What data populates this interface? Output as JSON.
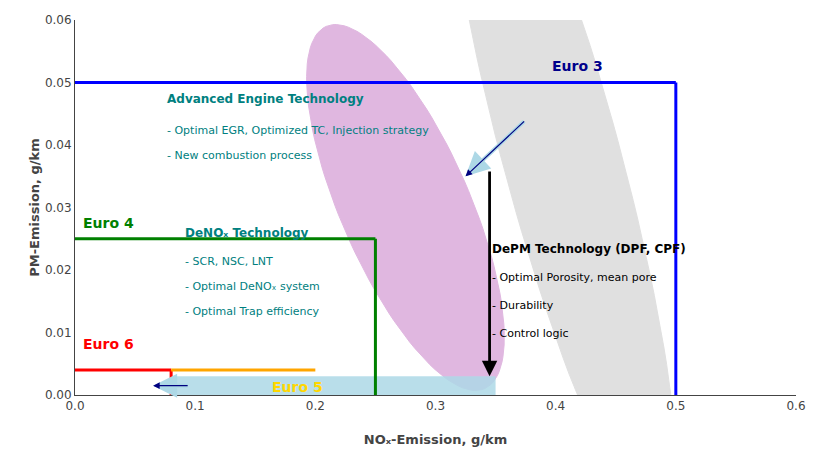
{
  "chart_data": {
    "type": "line",
    "xlabel": "NOₓ-Emission, g/km",
    "ylabel": "PM-Emission, g/km",
    "xlim": [
      0.0,
      0.6
    ],
    "ylim": [
      0.0,
      0.06
    ],
    "xticks": [
      {
        "value": 0.0,
        "label": "0.0"
      },
      0.1,
      0.2,
      0.3,
      0.4,
      0.5,
      0.6
    ],
    "yticks": [
      {
        "value": 0.0,
        "label": "0.00"
      },
      0.01,
      0.02,
      0.03,
      0.04,
      0.05,
      0.06
    ],
    "grid": false,
    "regions": [
      {
        "shape": "ellipse",
        "cx": 0.405,
        "cy": 0.038,
        "width": 0.22,
        "height": 0.055,
        "angle": -30,
        "color": "#cccccc"
      },
      {
        "shape": "ellipse",
        "cx": 0.275,
        "cy": 0.03,
        "width": 0.17,
        "height": 0.04,
        "angle": -15,
        "color": "#cc88cc"
      },
      {
        "shape": "rect",
        "name": "Euro 5",
        "x": [
          0.08,
          0.35
        ],
        "y": [
          0.0,
          0.003
        ],
        "color": "lightblue",
        "label": {
          "x": 0.185,
          "y": 0.0013,
          "color": "gold"
        }
      }
    ],
    "series": [
      {
        "name": "Euro 3",
        "color": "blue",
        "x": [
          0.0,
          0.5,
          null,
          0.5,
          0.5
        ],
        "y": [
          0.05,
          0.05,
          null,
          0.0,
          0.05
        ],
        "label": {
          "x": 0.395,
          "y": 0.051,
          "color": "darkblue"
        }
      },
      {
        "name": "Euro 4",
        "color": "green",
        "x": [
          0.0,
          0.25,
          null,
          0.25,
          0.25
        ],
        "y": [
          0.025,
          0.025,
          null,
          0.0,
          0.025
        ],
        "label": {
          "x": 0.005,
          "y": 0.026,
          "color": "green"
        }
      },
      {
        "name": "Euro 6",
        "color": "red",
        "x": [
          0.0,
          0.08,
          null,
          0.08,
          0.08
        ],
        "y": [
          0.004,
          0.004,
          null,
          0.0,
          0.004
        ],
        "label": {
          "x": 0.005,
          "y": 0.0065,
          "color": "red"
        }
      },
      {
        "color": "orange",
        "x": [
          0.08,
          0.2
        ],
        "y": [
          0.004,
          0.004
        ]
      }
    ],
    "arrows": [
      {
        "x1": 0.345,
        "y1": 0.036,
        "x2": 0.345,
        "y2": 0.003,
        "colors": [
          "black"
        ]
      },
      {
        "x1": 0.375,
        "y1": 0.044,
        "x2": 0.325,
        "y2": 0.035,
        "colors": [
          "lightblue",
          "navy"
        ]
      },
      {
        "x1": 0.095,
        "y1": 0.0015,
        "x2": 0.065,
        "y2": 0.0015,
        "colors": [
          "lightblue",
          "navy"
        ]
      }
    ],
    "notes": [
      {
        "color": "teal",
        "title": {
          "text": "Advanced Engine Technology",
          "x": 0.075,
          "y": 0.046
        },
        "lines": [
          {
            "text": "- Optimal EGR, Optimized TC, Injection strategy",
            "x": 0.075,
            "y": 0.041
          },
          {
            "text": "- New combustion process",
            "x": 0.075,
            "y": 0.037
          }
        ]
      },
      {
        "color": "teal",
        "title": {
          "text": "DeNOₓ Technology",
          "x": 0.09,
          "y": 0.0245
        },
        "lines": [
          {
            "text": "- SCR, NSC, LNT",
            "x": 0.09,
            "y": 0.02
          },
          {
            "text": "- Optimal DeNOₓ system",
            "x": 0.09,
            "y": 0.016
          },
          {
            "text": "- Optimal Trap efficiency",
            "x": 0.09,
            "y": 0.012
          }
        ]
      },
      {
        "color": "black",
        "title": {
          "text": "DePM Technology (DPF, CPF)",
          "x": 0.345,
          "y": 0.022
        },
        "lines": [
          {
            "text": "- Optimal Porosity, mean pore",
            "x": 0.345,
            "y": 0.0175
          },
          {
            "text": "- Durability",
            "x": 0.345,
            "y": 0.013
          },
          {
            "text": "- Control logic",
            "x": 0.345,
            "y": 0.0085
          }
        ]
      }
    ]
  }
}
